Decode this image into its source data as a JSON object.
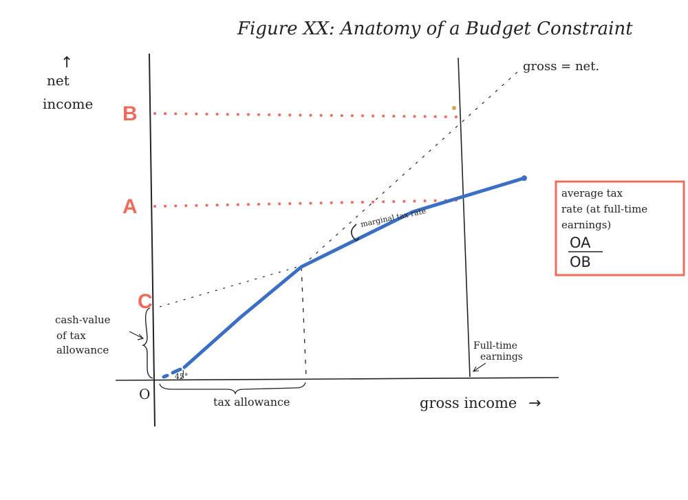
{
  "title": "Figure XX: Anatomy of a Budget Constraint",
  "axes": {
    "y_label_line1": "net",
    "y_label_line2": "income",
    "y_arrow": "↑",
    "x_label": "gross income",
    "x_arrow": "→",
    "origin": "O"
  },
  "points": {
    "A": "A",
    "B": "B",
    "C": "C"
  },
  "annotations": {
    "gross_equals_net": "gross = net.",
    "marginal_tax_rate": "marginal tax rate",
    "angle_45": "45°",
    "cash_value_line1": "cash-value",
    "cash_value_line2": "of tax",
    "cash_value_line3": "allowance",
    "tax_allowance": "tax allowance",
    "full_time_line1": "Full-time",
    "full_time_line2": "earnings"
  },
  "average_tax_box": {
    "line1": "average tax",
    "line2": "rate (at full-time",
    "line3": "earnings)",
    "numerator": "OA",
    "denominator": "OB"
  },
  "colors": {
    "ink": "#222222",
    "budget_line": "#3a6fc4",
    "red_dots": "#ef6b5c",
    "box_border": "#ef6b5c"
  }
}
